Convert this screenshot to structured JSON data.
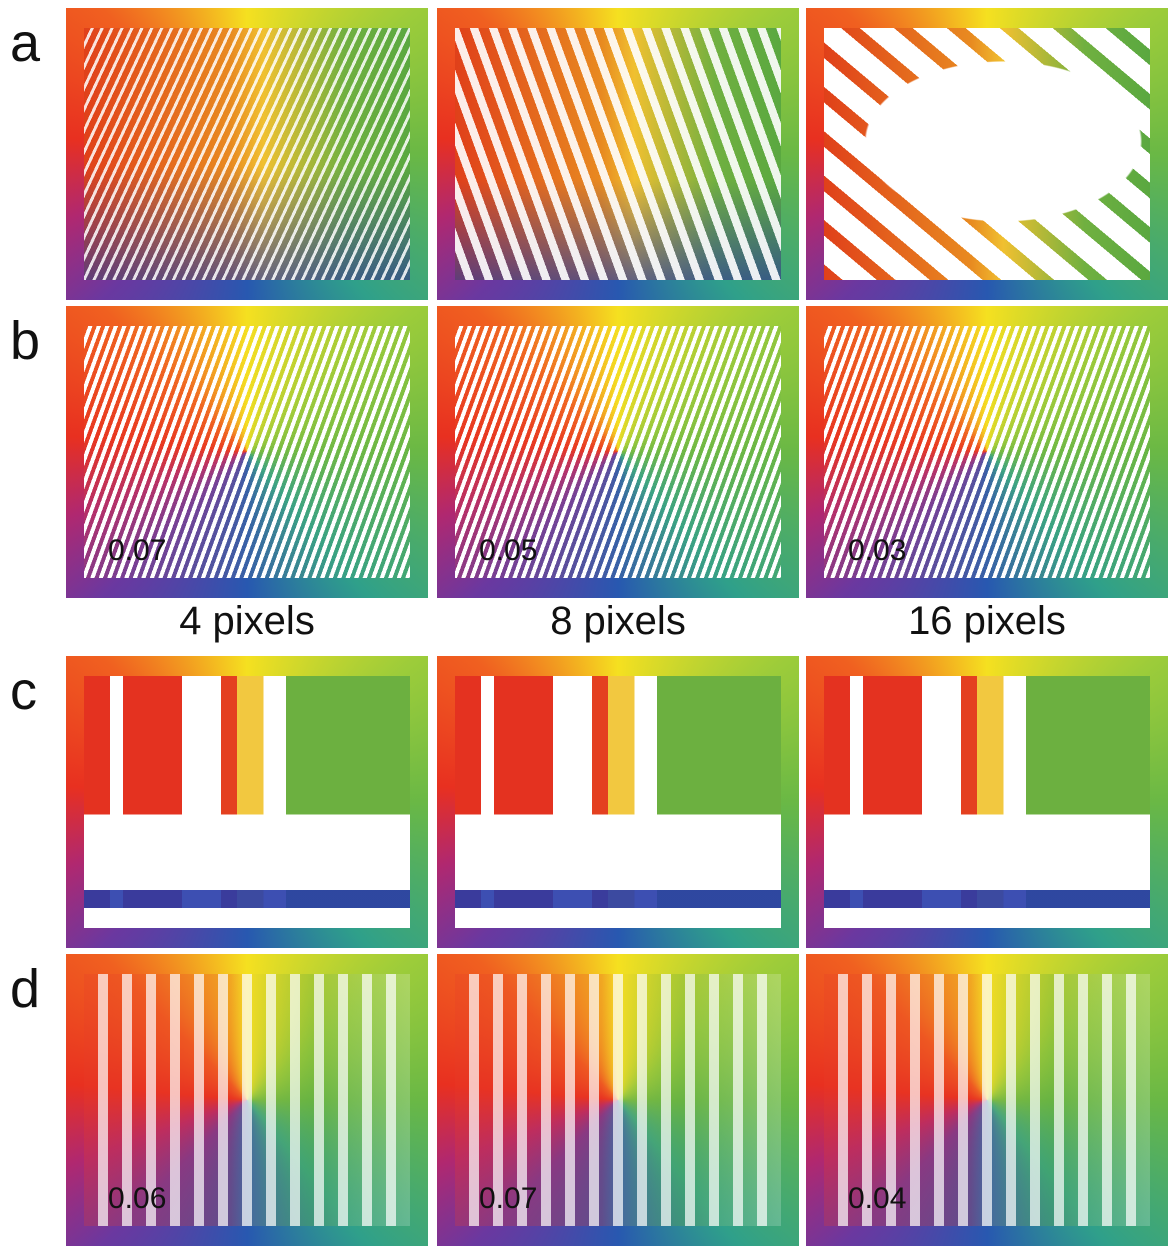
{
  "rows": [
    {
      "label": "a"
    },
    {
      "label": "b",
      "values": [
        "0.07",
        "0.05",
        "0.03"
      ]
    },
    {
      "label": "c"
    },
    {
      "label": "d",
      "values": [
        "0.06",
        "0.07",
        "0.04"
      ]
    }
  ],
  "columns": [
    "4 pixels",
    "8 pixels",
    "16 pixels"
  ]
}
